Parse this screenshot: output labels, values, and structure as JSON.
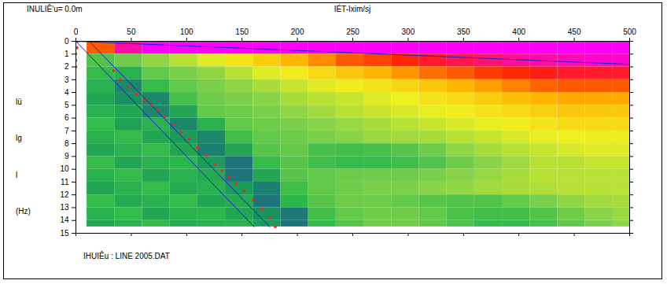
{
  "chart_data": {
    "type": "heatmap",
    "title": "INULIÊ'u= 0.0m",
    "x_label": "IÉT-Ixim/sj",
    "y_label": [
      "lü",
      "lg",
      "l",
      "(Hz)"
    ],
    "caption": "IHUIÊu : LINE 2005.DAT",
    "xlim": [
      0,
      500
    ],
    "xticks": [
      0,
      50,
      100,
      150,
      200,
      250,
      300,
      350,
      400,
      450,
      500
    ],
    "ylim": [
      0,
      15
    ],
    "yticks": [
      0,
      1,
      2,
      3,
      4,
      5,
      6,
      7,
      8,
      9,
      10,
      11,
      12,
      13,
      14,
      15
    ],
    "grid": false,
    "x_bins": [
      10,
      35,
      60,
      85,
      110,
      135,
      160,
      185,
      210,
      235,
      260,
      285,
      310,
      335,
      360,
      385,
      410,
      435,
      460,
      485,
      510
    ],
    "y_bins": [
      0,
      1,
      2,
      3,
      4,
      5,
      6,
      7,
      8,
      9,
      10,
      11,
      12,
      13,
      14,
      14.5
    ],
    "zlim": [
      0,
      1
    ],
    "colors": [
      "#1f5f8b",
      "#1a9a5a",
      "#2db84a",
      "#7fd14a",
      "#f0f020",
      "#ffb000",
      "#ff2000",
      "#ff00ff"
    ],
    "z": [
      [
        0.8,
        0.95,
        1,
        1,
        1,
        1,
        1,
        1,
        1,
        1,
        1,
        1,
        1,
        1,
        1,
        1,
        1,
        1,
        1,
        1
      ],
      [
        0.35,
        0.4,
        0.45,
        0.5,
        0.55,
        0.6,
        0.65,
        0.7,
        0.75,
        0.8,
        0.82,
        0.85,
        0.88,
        0.9,
        0.92,
        0.94,
        0.95,
        0.96,
        0.97,
        0.97
      ],
      [
        0.3,
        0.25,
        0.38,
        0.42,
        0.45,
        0.5,
        0.55,
        0.58,
        0.62,
        0.66,
        0.7,
        0.74,
        0.78,
        0.8,
        0.83,
        0.85,
        0.87,
        0.88,
        0.88,
        0.88
      ],
      [
        0.25,
        0.1,
        0.3,
        0.38,
        0.42,
        0.45,
        0.48,
        0.52,
        0.55,
        0.58,
        0.6,
        0.63,
        0.66,
        0.7,
        0.73,
        0.76,
        0.79,
        0.8,
        0.8,
        0.8
      ],
      [
        0.2,
        0.12,
        0.1,
        0.33,
        0.4,
        0.42,
        0.44,
        0.48,
        0.5,
        0.52,
        0.55,
        0.57,
        0.6,
        0.62,
        0.65,
        0.68,
        0.7,
        0.72,
        0.72,
        0.72
      ],
      [
        0.25,
        0.2,
        0.1,
        0.2,
        0.38,
        0.4,
        0.42,
        0.45,
        0.47,
        0.5,
        0.52,
        0.54,
        0.56,
        0.58,
        0.6,
        0.62,
        0.64,
        0.66,
        0.66,
        0.66
      ],
      [
        0.3,
        0.18,
        0.25,
        0.1,
        0.25,
        0.38,
        0.4,
        0.42,
        0.44,
        0.46,
        0.48,
        0.5,
        0.52,
        0.54,
        0.56,
        0.58,
        0.6,
        0.62,
        0.62,
        0.62
      ],
      [
        0.25,
        0.3,
        0.2,
        0.15,
        0.1,
        0.32,
        0.38,
        0.4,
        0.42,
        0.44,
        0.46,
        0.47,
        0.48,
        0.5,
        0.52,
        0.54,
        0.56,
        0.57,
        0.58,
        0.58
      ],
      [
        0.2,
        0.25,
        0.3,
        0.2,
        0.08,
        0.2,
        0.36,
        0.38,
        0.33,
        0.32,
        0.33,
        0.36,
        0.4,
        0.45,
        0.48,
        0.5,
        0.52,
        0.54,
        0.55,
        0.55
      ],
      [
        0.3,
        0.2,
        0.25,
        0.28,
        0.15,
        0.05,
        0.3,
        0.36,
        0.32,
        0.3,
        0.3,
        0.32,
        0.35,
        0.4,
        0.44,
        0.47,
        0.5,
        0.5,
        0.52,
        0.52
      ],
      [
        0.25,
        0.3,
        0.2,
        0.25,
        0.22,
        0.05,
        0.2,
        0.36,
        0.38,
        0.4,
        0.4,
        0.4,
        0.42,
        0.44,
        0.46,
        0.48,
        0.5,
        0.5,
        0.5,
        0.5
      ],
      [
        0.2,
        0.25,
        0.3,
        0.22,
        0.25,
        0.15,
        0.08,
        0.32,
        0.38,
        0.4,
        0.42,
        0.42,
        0.44,
        0.45,
        0.47,
        0.48,
        0.49,
        0.5,
        0.5,
        0.5
      ],
      [
        0.3,
        0.22,
        0.25,
        0.3,
        0.2,
        0.22,
        0.05,
        0.28,
        0.36,
        0.4,
        0.4,
        0.38,
        0.36,
        0.35,
        0.35,
        0.38,
        0.42,
        0.45,
        0.47,
        0.48
      ],
      [
        0.25,
        0.3,
        0.2,
        0.25,
        0.28,
        0.2,
        0.12,
        0.06,
        0.32,
        0.38,
        0.4,
        0.4,
        0.38,
        0.34,
        0.32,
        0.32,
        0.35,
        0.4,
        0.44,
        0.46
      ],
      [
        0.2,
        0.25,
        0.3,
        0.22,
        0.25,
        0.25,
        0.15,
        0.05,
        0.3,
        0.36,
        0.4,
        0.4,
        0.38,
        0.34,
        0.3,
        0.3,
        0.33,
        0.38,
        0.42,
        0.45
      ]
    ],
    "lines": [
      {
        "x": [
          0,
          500
        ],
        "y": [
          0,
          1.8
        ],
        "color": "#1a1ad0",
        "line_style": "solid"
      },
      {
        "x": [
          0,
          161
        ],
        "y": [
          0,
          14.5
        ],
        "color": "#1a1ad0",
        "line_style": "solid"
      },
      {
        "x": [
          12,
          175
        ],
        "y": [
          0,
          14.5
        ],
        "color": "#1a1ad0",
        "line_style": "solid"
      }
    ],
    "picks": {
      "x": [
        2,
        1,
        0,
        0,
        0,
        34,
        40,
        48,
        55,
        62,
        68,
        74,
        80,
        88,
        95,
        102,
        110,
        118,
        126,
        132,
        138,
        145,
        152,
        160,
        168,
        175,
        180
      ],
      "y": [
        0,
        0.5,
        1,
        1.5,
        2,
        2.3,
        3,
        3.6,
        4.1,
        4.6,
        5,
        5.4,
        5.9,
        6.5,
        7.1,
        7.6,
        8.3,
        8.9,
        9.6,
        10.1,
        10.6,
        11.1,
        11.7,
        12.4,
        13.1,
        13.8,
        14.5
      ],
      "color": "#ff2020",
      "marker": "dot"
    }
  }
}
